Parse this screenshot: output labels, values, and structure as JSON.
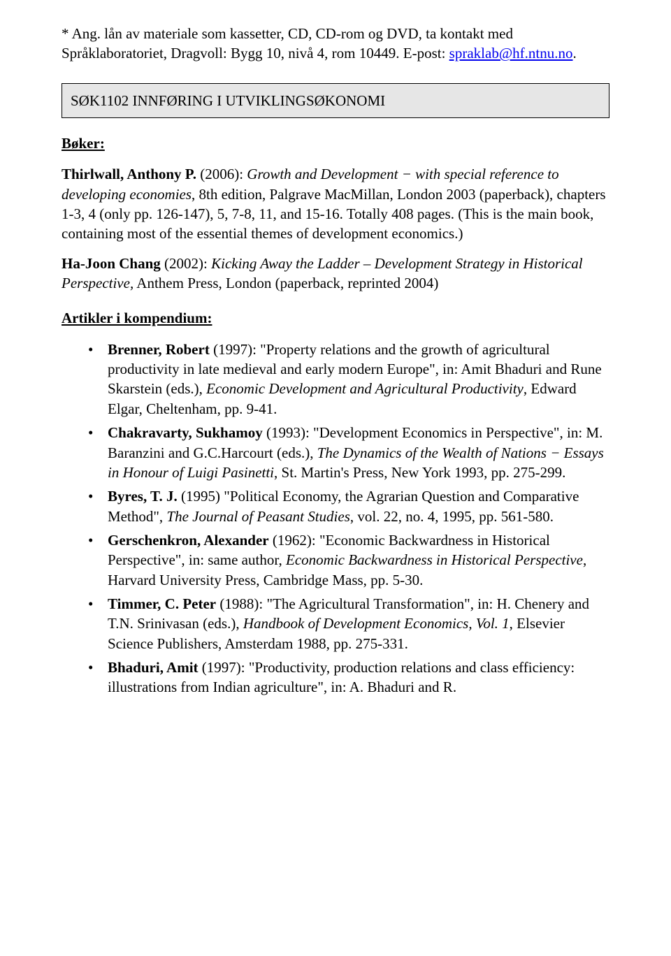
{
  "intro": {
    "p1": "* Ang. lån av materiale som kassetter, CD, CD-rom og DVD, ta kontakt med Språklaboratoriet, Dragvoll: Bygg 10, nivå 4, rom 10449. E-post: ",
    "email": "spraklab@hf.ntnu.no",
    "period": "."
  },
  "course_box": "SØK1102 INNFØRING I UTVIKLINGSØKONOMI",
  "books": {
    "heading": "Bøker:",
    "entries": [
      {
        "author": "Thirlwall, Anthony P.",
        "rest1": " (2006): ",
        "italic1": "Growth and Development − with special reference to developing economies",
        "rest2": ", 8th edition, Palgrave MacMillan, London 2003 (paperback), chapters 1-3, 4 (only pp. 126-147), 5, 7-8, 11, and 15-16. Totally 408 pages. (This is the main book, containing most of the essential themes of development economics.)"
      },
      {
        "author": "Ha-Joon Chang",
        "rest1": " (2002): ",
        "italic1": "Kicking Away the Ladder – Development Strategy in Historical Perspective,",
        "rest2": " Anthem Press, London (paperback, reprinted 2004)"
      }
    ]
  },
  "articles": {
    "heading": "Artikler i kompendium:",
    "items": [
      {
        "author": "Brenner, Robert",
        "plain1": " (1997): \"Property relations and the growth of agricultural productivity in late medieval and early modern Europe\", in: Amit Bhaduri and Rune Skarstein (eds.), ",
        "italic1": "Economic Development and Agricultural Productivity",
        "plain2": ", Edward Elgar, Cheltenham, pp. 9-41."
      },
      {
        "author": "Chakravarty, Sukhamoy",
        "plain1": " (1993): \"Development Economics in Perspective\", in: M. Baranzini and G.C.Harcourt (eds.), ",
        "italic1": "The Dynamics of the Wealth of Nations − Essays in Honour of Luigi Pasinetti",
        "plain2": ", St. Martin's Press, New York 1993, pp. 275-299."
      },
      {
        "author": "Byres, T. J.",
        "plain1": " (1995) \"Political Economy, the Agrarian Question and Comparative Method\", ",
        "italic1": "The Journal of Peasant Studies",
        "plain2": ", vol. 22, no. 4, 1995, pp. 561-580."
      },
      {
        "author": "Gerschenkron, Alexander",
        "plain1": " (1962): \"Economic Backwardness in Historical Perspective\", in: same author, ",
        "italic1": "Economic Backwardness in Historical Perspective",
        "plain2": ", Harvard University Press, Cambridge Mass, pp. 5-30."
      },
      {
        "author": "Timmer, C. Peter",
        "plain1": " (1988): \"The Agricultural Transformation\", in: H. Chenery and T.N. Srinivasan (eds.), ",
        "italic1": "Handbook of Development Economics, Vol. 1",
        "plain2": ", Elsevier Science Publishers, Amsterdam 1988, pp. 275-331."
      },
      {
        "author": "Bhaduri, Amit",
        "plain1": " (1997): \"Productivity, production relations and class efficiency: illustrations from Indian agriculture\", in: A. Bhaduri and R."
      }
    ]
  }
}
